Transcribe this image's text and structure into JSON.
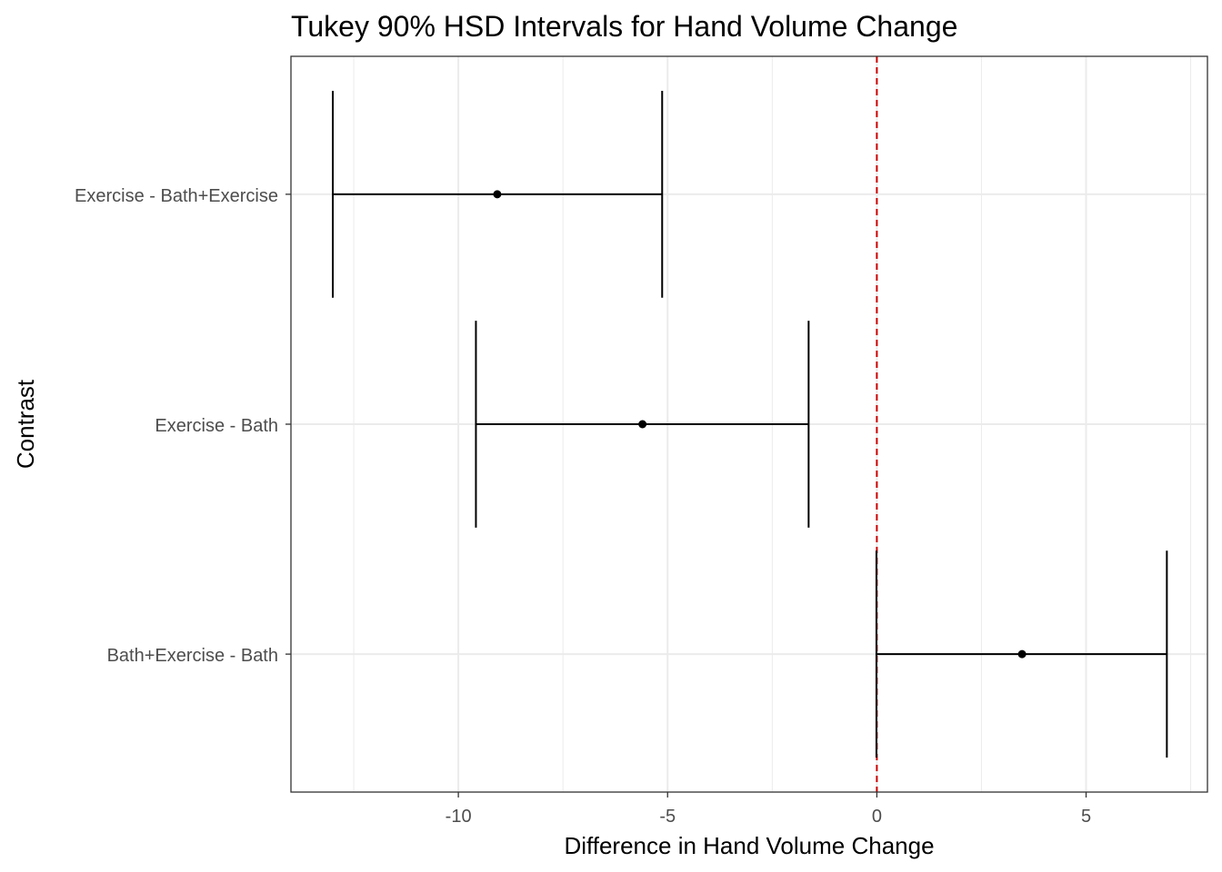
{
  "chart_data": {
    "type": "errorbar",
    "orientation": "horizontal",
    "title": "Tukey 90% HSD Intervals for Hand Volume Change",
    "xlabel": "Difference in Hand Volume Change",
    "ylabel": "Contrast",
    "xlim": [
      -14.0,
      7.9
    ],
    "xticks": [
      -10,
      -5,
      0,
      5
    ],
    "xtick_labels": [
      "-10",
      "-5",
      "0",
      "5"
    ],
    "grid": true,
    "reference_line": {
      "x": 0,
      "style": "dashed",
      "color": "#cc0000"
    },
    "categories": [
      "Exercise - Bath+Exercise",
      "Exercise - Bath",
      "Bath+Exercise - Bath"
    ],
    "estimates": [
      -9.07,
      -5.6,
      3.47
    ],
    "lower": [
      -13.0,
      -9.58,
      -0.01
    ],
    "upper": [
      -5.13,
      -1.63,
      6.93
    ]
  },
  "colors": {
    "intervals": "#000000",
    "grid": "#ebebeb",
    "panel_border": "#333333",
    "reference_line": "#cc0000"
  }
}
